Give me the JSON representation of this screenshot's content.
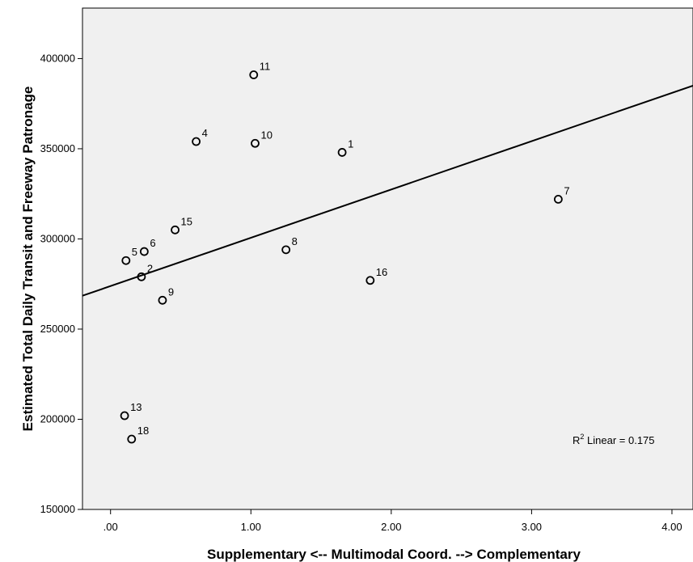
{
  "chart_data": {
    "type": "scatter",
    "title": "",
    "xlabel": "Supplementary <-- Multimodal Coord. --> Complementary",
    "ylabel": "Estimated Total Daily Transit and Freeway Patronage",
    "xlim": [
      -0.2,
      4.15
    ],
    "ylim": [
      150000,
      428000
    ],
    "x_ticks": [
      0,
      1,
      2,
      3,
      4
    ],
    "x_tick_labels": [
      ".00",
      "1.00",
      "2.00",
      "3.00",
      "4.00"
    ],
    "y_ticks": [
      150000,
      200000,
      250000,
      300000,
      350000,
      400000
    ],
    "y_tick_labels": [
      "150000",
      "200000",
      "250000",
      "300000",
      "350000",
      "400000"
    ],
    "grid": false,
    "background": "#f0f0f0",
    "points": [
      {
        "label": "1",
        "x": 1.65,
        "y": 348000
      },
      {
        "label": "2",
        "x": 0.22,
        "y": 279000
      },
      {
        "label": "4",
        "x": 0.61,
        "y": 354000
      },
      {
        "label": "5",
        "x": 0.11,
        "y": 288000
      },
      {
        "label": "6",
        "x": 0.24,
        "y": 293000
      },
      {
        "label": "7",
        "x": 3.19,
        "y": 322000
      },
      {
        "label": "8",
        "x": 1.25,
        "y": 294000
      },
      {
        "label": "9",
        "x": 0.37,
        "y": 266000
      },
      {
        "label": "10",
        "x": 1.03,
        "y": 353000
      },
      {
        "label": "11",
        "x": 1.02,
        "y": 391000
      },
      {
        "label": "13",
        "x": 0.1,
        "y": 202000
      },
      {
        "label": "15",
        "x": 0.46,
        "y": 305000
      },
      {
        "label": "16",
        "x": 1.85,
        "y": 277000
      },
      {
        "label": "18",
        "x": 0.15,
        "y": 189000
      }
    ],
    "fit_line": {
      "type": "linear",
      "x": [
        -0.2,
        4.15
      ],
      "y": [
        268500,
        385000
      ]
    },
    "annotation": {
      "prefix": "R",
      "superscript": "2",
      "text": " Linear = 0.175",
      "placement": "bottom-right"
    }
  }
}
